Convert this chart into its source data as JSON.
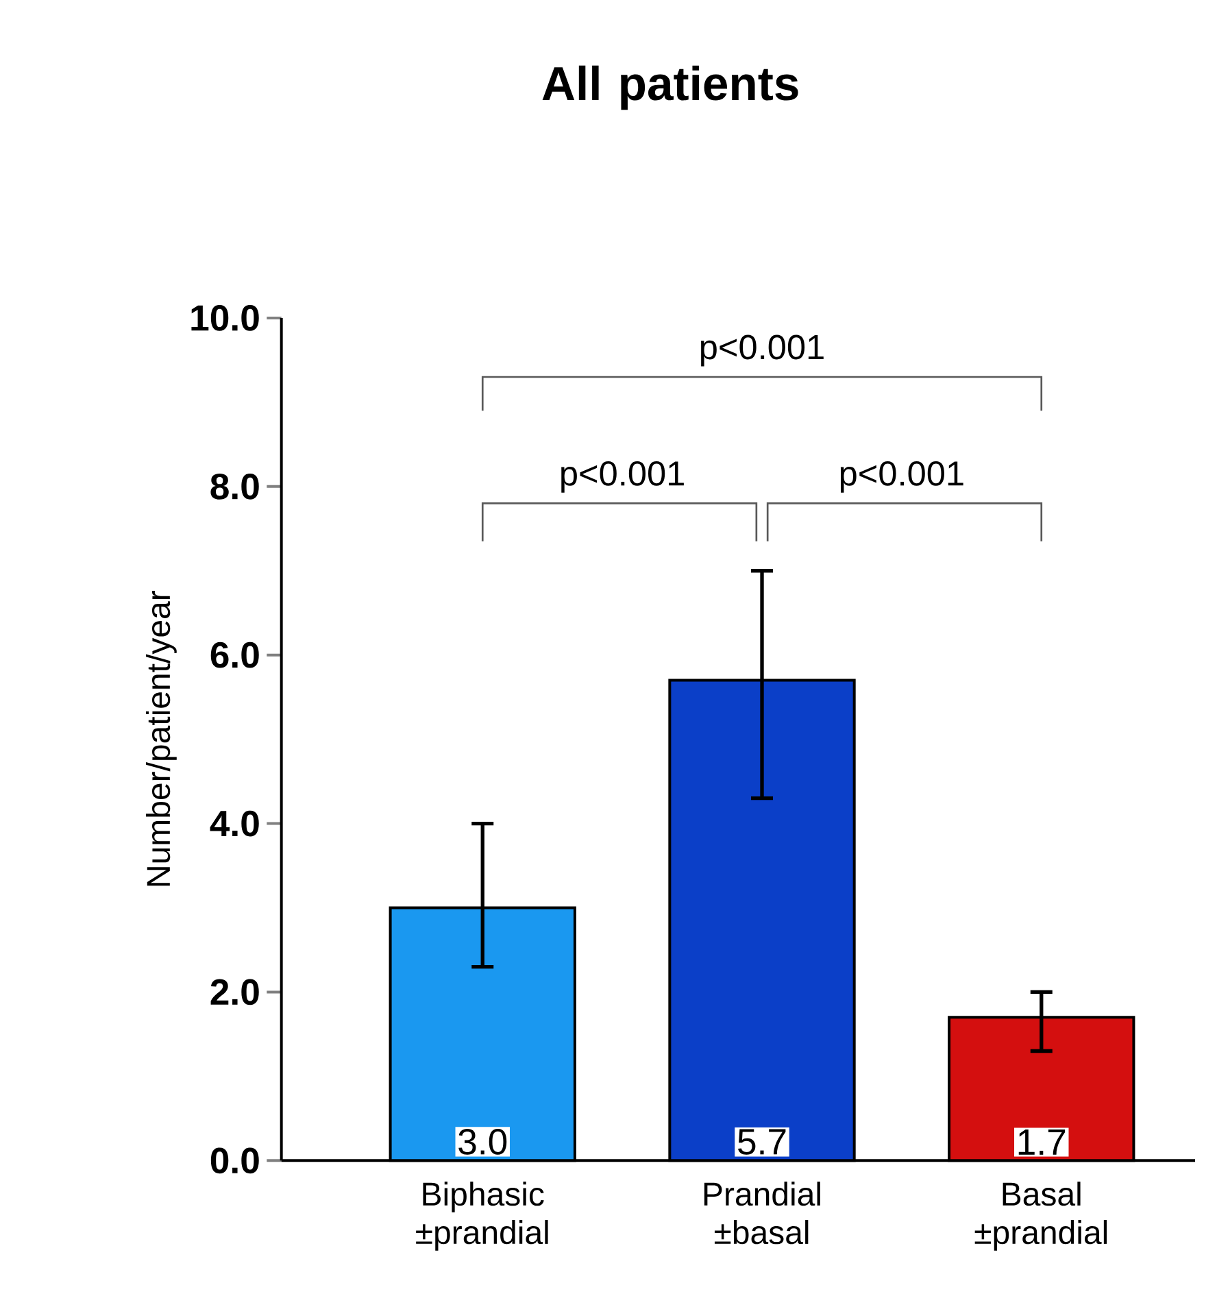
{
  "chart_data": {
    "type": "bar",
    "title": "All patients",
    "ylabel": "Number/patient/year",
    "categories": [
      "Biphasic ±prandial",
      "Prandial ±basal",
      "Basal ±prandial"
    ],
    "values": [
      3.0,
      5.7,
      1.7
    ],
    "colors": [
      "#1a98f0",
      "#0b3fc8",
      "#d40f0f"
    ],
    "errors": [
      [
        2.3,
        4.0
      ],
      [
        4.3,
        7.0
      ],
      [
        1.3,
        2.0
      ]
    ],
    "value_labels": [
      "3.0",
      "5.7",
      "1.7"
    ],
    "ylim": [
      0,
      10
    ],
    "yticks": [
      {
        "value": 0,
        "label": "0.0"
      },
      {
        "value": 2,
        "label": "2.0"
      },
      {
        "value": 4,
        "label": "4.0"
      },
      {
        "value": 6,
        "label": "6.0"
      },
      {
        "value": 8,
        "label": "8.0"
      },
      {
        "value": 10,
        "label": "10.0"
      }
    ],
    "annotations": [
      "p<0.001",
      "p<0.001",
      "p<0.001"
    ],
    "grid": false
  }
}
